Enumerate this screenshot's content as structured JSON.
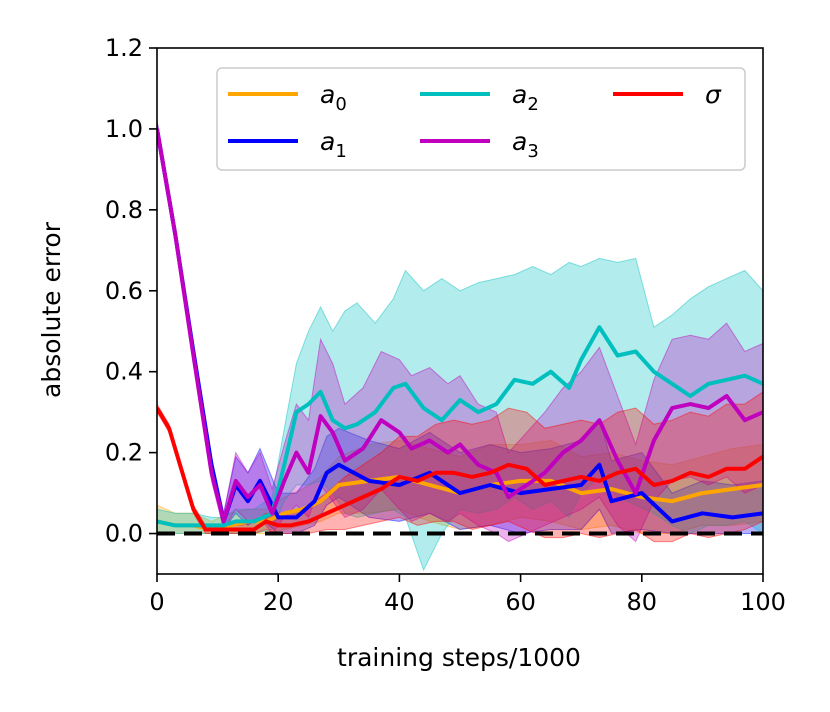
{
  "chart_data": {
    "type": "line",
    "title": "",
    "xlabel": "training steps/1000",
    "ylabel": "absolute error",
    "xlim": [
      0,
      100
    ],
    "ylim": [
      -0.1,
      1.2
    ],
    "xticks": [
      0,
      20,
      40,
      60,
      80,
      100
    ],
    "xtick_labels": [
      "0",
      "20",
      "40",
      "60",
      "80",
      "100"
    ],
    "yticks": [
      0.0,
      0.2,
      0.4,
      0.6,
      0.8,
      1.0,
      1.2
    ],
    "ytick_labels": [
      "0.0",
      "0.2",
      "0.4",
      "0.6",
      "0.8",
      "1.0",
      "1.2"
    ],
    "grid": false,
    "legend_position": "top-right",
    "reference_line": {
      "y": 0.0,
      "style": "dashed",
      "color": "#000000"
    },
    "series": [
      {
        "name": "a0",
        "label_base": "a",
        "label_sub": "0",
        "color": "#ffa500",
        "x": [
          0,
          3,
          6,
          9,
          12,
          15,
          18,
          21,
          24,
          27,
          30,
          35,
          40,
          45,
          50,
          55,
          60,
          65,
          70,
          75,
          80,
          85,
          90,
          95,
          100
        ],
        "mean": [
          0.03,
          0.02,
          0.02,
          0.01,
          0.02,
          0.03,
          0.03,
          0.05,
          0.06,
          0.08,
          0.12,
          0.13,
          0.14,
          0.12,
          0.1,
          0.12,
          0.13,
          0.13,
          0.1,
          0.11,
          0.09,
          0.08,
          0.1,
          0.11,
          0.12
        ],
        "lower": [
          0.0,
          0.0,
          0.0,
          0.0,
          0.0,
          0.0,
          0.0,
          0.01,
          0.02,
          0.03,
          0.05,
          0.05,
          0.06,
          0.03,
          0.01,
          0.02,
          0.04,
          0.03,
          0.01,
          0.02,
          0.0,
          0.0,
          0.02,
          0.02,
          0.03
        ],
        "upper": [
          0.07,
          0.05,
          0.05,
          0.03,
          0.05,
          0.06,
          0.06,
          0.09,
          0.11,
          0.14,
          0.19,
          0.22,
          0.23,
          0.21,
          0.19,
          0.22,
          0.22,
          0.23,
          0.19,
          0.2,
          0.18,
          0.17,
          0.19,
          0.21,
          0.22
        ]
      },
      {
        "name": "a1",
        "label_base": "a",
        "label_sub": "1",
        "color": "#0000ff",
        "x": [
          0,
          3,
          6,
          9,
          11,
          13,
          15,
          17,
          20,
          23,
          26,
          28,
          30,
          35,
          40,
          45,
          50,
          55,
          60,
          65,
          70,
          73,
          75,
          80,
          85,
          90,
          95,
          100
        ],
        "mean": [
          1.0,
          0.74,
          0.45,
          0.17,
          0.03,
          0.12,
          0.08,
          0.13,
          0.04,
          0.04,
          0.08,
          0.15,
          0.17,
          0.13,
          0.12,
          0.15,
          0.1,
          0.12,
          0.1,
          0.11,
          0.12,
          0.17,
          0.08,
          0.1,
          0.03,
          0.05,
          0.04,
          0.05
        ],
        "lower": [
          0.98,
          0.72,
          0.43,
          0.15,
          0.01,
          0.05,
          0.02,
          0.04,
          0.0,
          0.0,
          0.02,
          0.07,
          0.09,
          0.04,
          0.03,
          0.05,
          0.01,
          0.02,
          0.0,
          0.01,
          0.01,
          0.06,
          0.0,
          0.01,
          0.0,
          0.0,
          0.0,
          0.0
        ],
        "upper": [
          1.02,
          0.76,
          0.47,
          0.19,
          0.05,
          0.19,
          0.15,
          0.21,
          0.1,
          0.1,
          0.16,
          0.24,
          0.26,
          0.23,
          0.21,
          0.25,
          0.2,
          0.22,
          0.2,
          0.21,
          0.23,
          0.28,
          0.18,
          0.2,
          0.1,
          0.13,
          0.12,
          0.13
        ]
      },
      {
        "name": "a2",
        "label_base": "a",
        "label_sub": "2",
        "color": "#00bfbf",
        "x": [
          0,
          3,
          6,
          9,
          11,
          13,
          16,
          19,
          21,
          23,
          25,
          27,
          29,
          31,
          33,
          36,
          39,
          41,
          44,
          47,
          50,
          53,
          56,
          59,
          62,
          65,
          68,
          70,
          73,
          76,
          79,
          82,
          85,
          88,
          91,
          94,
          97,
          100
        ],
        "mean": [
          0.03,
          0.02,
          0.02,
          0.02,
          0.02,
          0.03,
          0.03,
          0.05,
          0.17,
          0.3,
          0.32,
          0.35,
          0.28,
          0.26,
          0.27,
          0.3,
          0.36,
          0.37,
          0.31,
          0.28,
          0.33,
          0.3,
          0.32,
          0.38,
          0.37,
          0.4,
          0.36,
          0.43,
          0.51,
          0.44,
          0.45,
          0.4,
          0.37,
          0.34,
          0.37,
          0.38,
          0.39,
          0.37
        ],
        "lower": [
          0.0,
          0.0,
          0.0,
          0.0,
          0.0,
          0.0,
          0.0,
          0.01,
          0.08,
          0.12,
          0.12,
          0.13,
          0.1,
          0.05,
          0.04,
          0.05,
          0.06,
          0.04,
          -0.09,
          0.0,
          0.06,
          0.05,
          0.06,
          0.09,
          0.06,
          0.08,
          0.04,
          0.1,
          0.14,
          0.09,
          0.07,
          0.05,
          0.02,
          0.0,
          0.02,
          0.02,
          0.03,
          0.0
        ],
        "upper": [
          0.06,
          0.05,
          0.05,
          0.04,
          0.04,
          0.06,
          0.06,
          0.09,
          0.26,
          0.42,
          0.5,
          0.56,
          0.5,
          0.55,
          0.57,
          0.52,
          0.58,
          0.65,
          0.6,
          0.63,
          0.6,
          0.62,
          0.63,
          0.64,
          0.66,
          0.64,
          0.67,
          0.66,
          0.68,
          0.67,
          0.68,
          0.51,
          0.54,
          0.58,
          0.61,
          0.63,
          0.65,
          0.6
        ]
      },
      {
        "name": "a3",
        "label_base": "a",
        "label_sub": "3",
        "color": "#bf00bf",
        "x": [
          0,
          3,
          6,
          9,
          11,
          13,
          15,
          17,
          19,
          21,
          23,
          25,
          27,
          29,
          31,
          34,
          37,
          40,
          42,
          45,
          48,
          50,
          53,
          56,
          58,
          61,
          64,
          67,
          70,
          73,
          76,
          79,
          82,
          85,
          88,
          91,
          94,
          97,
          100
        ],
        "mean": [
          1.0,
          0.74,
          0.44,
          0.15,
          0.03,
          0.13,
          0.09,
          0.12,
          0.05,
          0.13,
          0.2,
          0.15,
          0.29,
          0.25,
          0.18,
          0.21,
          0.28,
          0.25,
          0.21,
          0.23,
          0.2,
          0.22,
          0.17,
          0.15,
          0.09,
          0.12,
          0.15,
          0.2,
          0.23,
          0.28,
          0.18,
          0.1,
          0.23,
          0.31,
          0.32,
          0.31,
          0.34,
          0.28,
          0.3
        ],
        "lower": [
          0.98,
          0.72,
          0.42,
          0.13,
          0.01,
          0.06,
          0.03,
          0.04,
          0.0,
          0.04,
          0.07,
          0.04,
          0.12,
          0.08,
          0.04,
          0.06,
          0.11,
          0.06,
          0.03,
          0.05,
          0.03,
          0.05,
          0.02,
          0.0,
          -0.02,
          0.0,
          0.02,
          0.04,
          0.06,
          0.09,
          0.02,
          -0.02,
          0.08,
          0.13,
          0.14,
          0.12,
          0.14,
          0.1,
          0.12
        ],
        "upper": [
          1.02,
          0.76,
          0.46,
          0.17,
          0.05,
          0.2,
          0.15,
          0.2,
          0.11,
          0.22,
          0.32,
          0.28,
          0.48,
          0.42,
          0.32,
          0.36,
          0.45,
          0.43,
          0.39,
          0.41,
          0.37,
          0.39,
          0.32,
          0.3,
          0.2,
          0.25,
          0.3,
          0.36,
          0.4,
          0.46,
          0.34,
          0.22,
          0.38,
          0.48,
          0.49,
          0.48,
          0.52,
          0.45,
          0.47
        ]
      },
      {
        "name": "sigma",
        "label_base": "σ",
        "label_sub": "",
        "color": "#ff0000",
        "x": [
          0,
          2,
          4,
          6,
          8,
          10,
          12,
          14,
          16,
          18,
          20,
          22,
          25,
          28,
          31,
          34,
          37,
          40,
          43,
          46,
          49,
          52,
          55,
          58,
          61,
          64,
          67,
          70,
          73,
          76,
          79,
          82,
          85,
          88,
          91,
          94,
          97,
          100
        ],
        "mean": [
          0.31,
          0.26,
          0.16,
          0.06,
          0.01,
          0.01,
          0.01,
          0.01,
          0.01,
          0.03,
          0.02,
          0.02,
          0.03,
          0.05,
          0.07,
          0.09,
          0.11,
          0.14,
          0.13,
          0.15,
          0.15,
          0.14,
          0.15,
          0.17,
          0.16,
          0.12,
          0.13,
          0.14,
          0.13,
          0.15,
          0.16,
          0.12,
          0.13,
          0.15,
          0.14,
          0.16,
          0.16,
          0.19
        ],
        "lower": [
          0.3,
          0.25,
          0.15,
          0.05,
          0.0,
          0.0,
          0.0,
          0.0,
          0.0,
          0.01,
          0.0,
          0.0,
          0.0,
          0.01,
          0.01,
          0.02,
          0.03,
          0.04,
          0.02,
          0.03,
          0.03,
          0.01,
          0.02,
          0.03,
          0.01,
          -0.01,
          -0.01,
          0.0,
          -0.01,
          0.0,
          0.01,
          -0.02,
          -0.02,
          0.0,
          -0.01,
          0.0,
          0.01,
          0.03
        ],
        "upper": [
          0.32,
          0.27,
          0.17,
          0.07,
          0.02,
          0.02,
          0.02,
          0.02,
          0.03,
          0.05,
          0.05,
          0.05,
          0.07,
          0.1,
          0.14,
          0.17,
          0.2,
          0.24,
          0.24,
          0.27,
          0.28,
          0.27,
          0.28,
          0.31,
          0.3,
          0.26,
          0.27,
          0.28,
          0.27,
          0.3,
          0.31,
          0.27,
          0.28,
          0.3,
          0.29,
          0.32,
          0.32,
          0.35
        ]
      }
    ]
  }
}
